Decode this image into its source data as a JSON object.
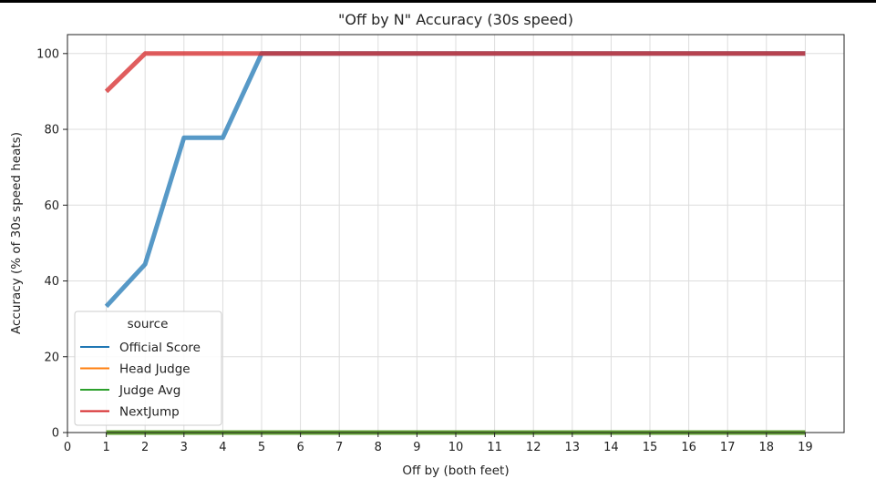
{
  "chart_data": {
    "type": "line",
    "title": "\"Off by N\" Accuracy (30s speed)",
    "xlabel": "Off by (both feet)",
    "ylabel": "Accuracy (% of 30s speed heats)",
    "xlim": [
      0,
      20
    ],
    "ylim": [
      0,
      105
    ],
    "xticks": [
      "0",
      "1",
      "2",
      "3",
      "4",
      "5",
      "6",
      "7",
      "8",
      "9",
      "10",
      "11",
      "12",
      "13",
      "14",
      "15",
      "16",
      "17",
      "18",
      "19"
    ],
    "yticks": [
      "0",
      "20",
      "40",
      "60",
      "80",
      "100"
    ],
    "grid": true,
    "legend": {
      "title": "source",
      "placement": "lower-left"
    },
    "x": [
      1,
      2,
      3,
      4,
      5,
      6,
      7,
      8,
      9,
      10,
      11,
      12,
      13,
      14,
      15,
      16,
      17,
      18,
      19
    ],
    "series": [
      {
        "name": "Official Score",
        "color": "#1f77b4",
        "values": [
          33.3,
          44.4,
          77.8,
          77.8,
          100,
          100,
          100,
          100,
          100,
          100,
          100,
          100,
          100,
          100,
          100,
          100,
          100,
          100,
          100
        ]
      },
      {
        "name": "Head Judge",
        "color": "#ff7f0e",
        "values": [
          0,
          0,
          0,
          0,
          0,
          0,
          0,
          0,
          0,
          0,
          0,
          0,
          0,
          0,
          0,
          0,
          0,
          0,
          0
        ]
      },
      {
        "name": "Judge Avg",
        "color": "#2ca02c",
        "values": [
          0,
          0,
          0,
          0,
          0,
          0,
          0,
          0,
          0,
          0,
          0,
          0,
          0,
          0,
          0,
          0,
          0,
          0,
          0
        ]
      },
      {
        "name": "NextJump",
        "color": "#d62728",
        "values": [
          90,
          100,
          100,
          100,
          100,
          100,
          100,
          100,
          100,
          100,
          100,
          100,
          100,
          100,
          100,
          100,
          100,
          100,
          100
        ]
      }
    ]
  }
}
